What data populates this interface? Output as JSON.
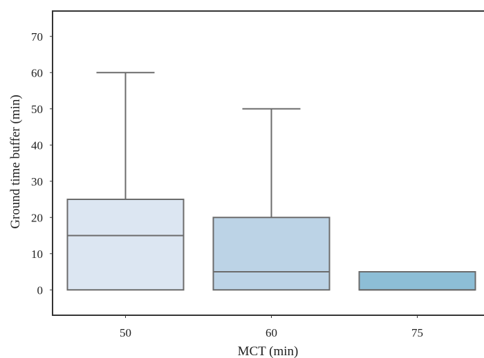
{
  "chart_data": {
    "type": "box",
    "xlabel": "MCT (min)",
    "ylabel": "Ground time buffer (min)",
    "ylim": [
      -7,
      77
    ],
    "yticks": [
      0,
      10,
      20,
      30,
      40,
      50,
      60,
      70
    ],
    "categories": [
      "50",
      "60",
      "75"
    ],
    "boxes": [
      {
        "category": "50",
        "whisker_low": 0,
        "q1": 0,
        "median": 15,
        "q3": 25,
        "whisker_high": 60,
        "color": "#dce6f2"
      },
      {
        "category": "60",
        "whisker_low": 0,
        "q1": 0,
        "median": 5,
        "q3": 20,
        "whisker_high": 50,
        "color": "#bcd3e6"
      },
      {
        "category": "75",
        "whisker_low": 0,
        "q1": 0,
        "median": 0,
        "q3": 5,
        "whisker_high": 5,
        "color": "#8dbed6"
      }
    ],
    "grid": false,
    "legend": "none",
    "colors": {
      "box_edge": "#6b6b6b",
      "axis": "#333333"
    }
  }
}
